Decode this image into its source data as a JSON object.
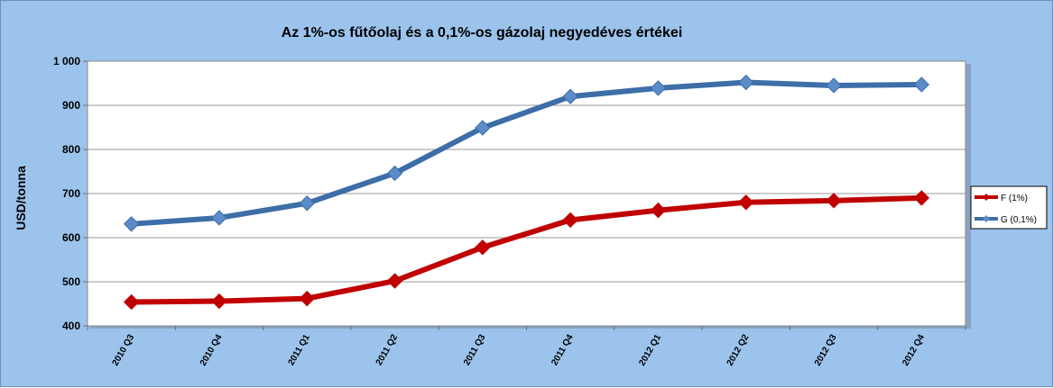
{
  "chart_data": {
    "type": "line",
    "title": "Az 1%-os fűtőolaj és a 0,1%-os gázolaj negyedéves értékei",
    "ylabel": "USD/tonna",
    "xlabel": "",
    "ylim": [
      400,
      1000
    ],
    "yticks": [
      400,
      500,
      600,
      700,
      800,
      900,
      1000
    ],
    "ytick_labels": [
      "400",
      "500",
      "600",
      "700",
      "800",
      "900",
      "1 000"
    ],
    "categories": [
      "2010 Q3",
      "2010 Q4",
      "2011 Q1",
      "2011 Q2",
      "2011 Q3",
      "2011 Q4",
      "2012 Q1",
      "2012 Q2",
      "2012 Q3",
      "2012 Q4"
    ],
    "grid": true,
    "legend_position": "right",
    "series": [
      {
        "name": "F (1%)",
        "color": "#c00000",
        "marker": "diamond",
        "values": [
          454,
          456,
          462,
          502,
          578,
          640,
          662,
          680,
          684,
          690
        ]
      },
      {
        "name": "G (0,1%)",
        "color": "#3d6ea8",
        "marker": "diamond",
        "values": [
          631,
          645,
          678,
          746,
          849,
          920,
          939,
          952,
          945,
          947
        ]
      }
    ]
  }
}
